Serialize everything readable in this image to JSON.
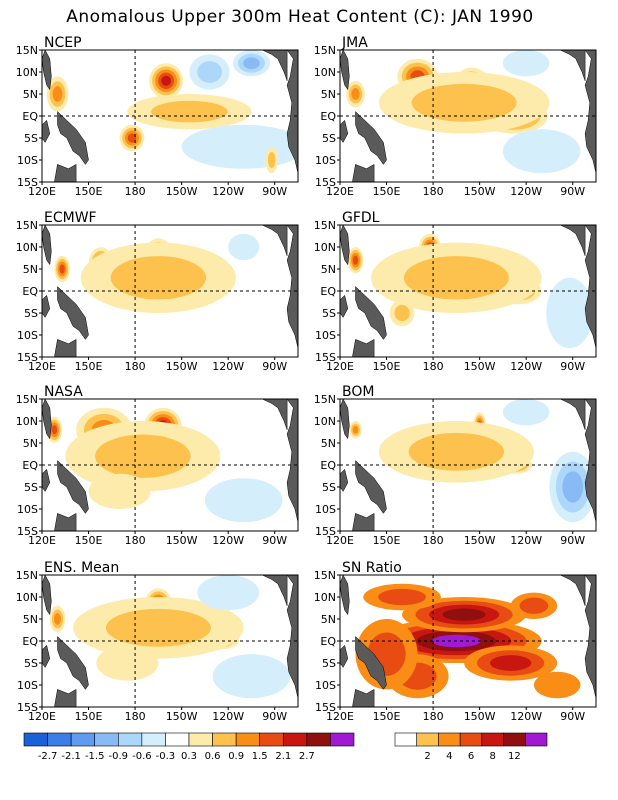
{
  "figure": {
    "title": "Anomalous Upper 300m Heat Content (C): JAN 1990"
  },
  "chart_data": [
    {
      "type": "heatmap",
      "title": "NCEP",
      "xlabel": "",
      "ylabel": "",
      "x_ticks": [
        "120E",
        "150E",
        "180",
        "150W",
        "120W",
        "90W"
      ],
      "y_ticks": [
        "15N",
        "10N",
        "5N",
        "EQ",
        "5S",
        "10S",
        "15S"
      ],
      "xlim": [
        120,
        285
      ],
      "ylim": [
        -15,
        15
      ],
      "features": [
        {
          "lon": 200,
          "lat": 8,
          "rx": 11,
          "ry": 4,
          "v": 2.1
        },
        {
          "lon": 178,
          "lat": -5,
          "rx": 8,
          "ry": 3,
          "v": 1.5
        },
        {
          "lon": 130,
          "lat": 5,
          "rx": 7,
          "ry": 4,
          "v": 0.9
        },
        {
          "lon": 215,
          "lat": 1,
          "rx": 40,
          "ry": 4,
          "v": 0.6
        },
        {
          "lon": 228,
          "lat": 10,
          "rx": 13,
          "ry": 4,
          "v": -0.6
        },
        {
          "lon": 255,
          "lat": 12,
          "rx": 12,
          "ry": 3,
          "v": -0.9
        },
        {
          "lon": 250,
          "lat": -7,
          "rx": 40,
          "ry": 5,
          "v": -0.3
        },
        {
          "lon": 268,
          "lat": -10,
          "rx": 4,
          "ry": 3,
          "v": 0.6
        }
      ]
    },
    {
      "type": "heatmap",
      "title": "JMA",
      "xlabel": "",
      "ylabel": "",
      "x_ticks": [
        "120E",
        "150E",
        "180",
        "150W",
        "120W",
        "90W"
      ],
      "y_ticks": [
        "15N",
        "10N",
        "5N",
        "EQ",
        "5S",
        "10S",
        "15S"
      ],
      "xlim": [
        120,
        285
      ],
      "ylim": [
        -15,
        15
      ],
      "features": [
        {
          "lon": 170,
          "lat": 9,
          "rx": 13,
          "ry": 4,
          "v": 1.5
        },
        {
          "lon": 205,
          "lat": 7,
          "rx": 12,
          "ry": 4,
          "v": 1.5
        },
        {
          "lon": 232,
          "lat": 0,
          "rx": 22,
          "ry": 4,
          "v": 1.5
        },
        {
          "lon": 130,
          "lat": 5,
          "rx": 6,
          "ry": 3,
          "v": 0.9
        },
        {
          "lon": 200,
          "lat": 3,
          "rx": 55,
          "ry": 7,
          "v": 0.6
        },
        {
          "lon": 250,
          "lat": -8,
          "rx": 25,
          "ry": 5,
          "v": -0.3
        },
        {
          "lon": 240,
          "lat": 12,
          "rx": 15,
          "ry": 3,
          "v": -0.3
        }
      ]
    },
    {
      "type": "heatmap",
      "title": "ECMWF",
      "xlabel": "",
      "ylabel": "",
      "x_ticks": [
        "120E",
        "150E",
        "180",
        "150W",
        "120W",
        "90W"
      ],
      "y_ticks": [
        "15N",
        "10N",
        "5N",
        "EQ",
        "5S",
        "10S",
        "15S"
      ],
      "xlim": [
        120,
        285
      ],
      "ylim": [
        -15,
        15
      ],
      "features": [
        {
          "lon": 195,
          "lat": 7,
          "rx": 10,
          "ry": 5,
          "v": 2.1
        },
        {
          "lon": 158,
          "lat": 6,
          "rx": 8,
          "ry": 4,
          "v": 1.5
        },
        {
          "lon": 133,
          "lat": 5,
          "rx": 5,
          "ry": 3,
          "v": 1.5
        },
        {
          "lon": 215,
          "lat": 0,
          "rx": 18,
          "ry": 3,
          "v": 1.5
        },
        {
          "lon": 195,
          "lat": 3,
          "rx": 50,
          "ry": 8,
          "v": 0.6
        },
        {
          "lon": 250,
          "lat": 10,
          "rx": 10,
          "ry": 3,
          "v": -0.3
        }
      ]
    },
    {
      "type": "heatmap",
      "title": "GFDL",
      "xlabel": "",
      "ylabel": "",
      "x_ticks": [
        "120E",
        "150E",
        "180",
        "150W",
        "120W",
        "90W"
      ],
      "y_ticks": [
        "15N",
        "10N",
        "5N",
        "EQ",
        "5S",
        "10S",
        "15S"
      ],
      "xlim": [
        120,
        285
      ],
      "ylim": [
        -15,
        15
      ],
      "features": [
        {
          "lon": 178,
          "lat": 10,
          "rx": 7,
          "ry": 3,
          "v": 1.5
        },
        {
          "lon": 205,
          "lat": 7,
          "rx": 10,
          "ry": 3,
          "v": 1.5
        },
        {
          "lon": 130,
          "lat": 7,
          "rx": 5,
          "ry": 3,
          "v": 1.5
        },
        {
          "lon": 235,
          "lat": 0,
          "rx": 15,
          "ry": 3,
          "v": 0.9
        },
        {
          "lon": 195,
          "lat": 3,
          "rx": 55,
          "ry": 8,
          "v": 0.6
        },
        {
          "lon": 268,
          "lat": -5,
          "rx": 15,
          "ry": 8,
          "v": -0.3
        },
        {
          "lon": 160,
          "lat": -5,
          "rx": 8,
          "ry": 3,
          "v": 0.6
        }
      ]
    },
    {
      "type": "heatmap",
      "title": "NASA",
      "xlabel": "",
      "ylabel": "",
      "x_ticks": [
        "120E",
        "150E",
        "180",
        "150W",
        "120W",
        "90W"
      ],
      "y_ticks": [
        "15N",
        "10N",
        "5N",
        "EQ",
        "5S",
        "10S",
        "15S"
      ],
      "xlim": [
        120,
        285
      ],
      "ylim": [
        -15,
        15
      ],
      "features": [
        {
          "lon": 198,
          "lat": 9,
          "rx": 12,
          "ry": 4,
          "v": 2.1
        },
        {
          "lon": 128,
          "lat": 8,
          "rx": 5,
          "ry": 3,
          "v": 1.5
        },
        {
          "lon": 160,
          "lat": 8,
          "rx": 18,
          "ry": 5,
          "v": 0.9
        },
        {
          "lon": 185,
          "lat": 2,
          "rx": 50,
          "ry": 8,
          "v": 0.6
        },
        {
          "lon": 170,
          "lat": -6,
          "rx": 20,
          "ry": 4,
          "v": 0.3
        },
        {
          "lon": 250,
          "lat": -8,
          "rx": 25,
          "ry": 5,
          "v": -0.3
        }
      ]
    },
    {
      "type": "heatmap",
      "title": "BOM",
      "xlabel": "",
      "ylabel": "",
      "x_ticks": [
        "120E",
        "150E",
        "180",
        "150W",
        "120W",
        "90W"
      ],
      "y_ticks": [
        "15N",
        "10N",
        "5N",
        "EQ",
        "5S",
        "10S",
        "15S"
      ],
      "xlim": [
        120,
        285
      ],
      "ylim": [
        -15,
        15
      ],
      "features": [
        {
          "lon": 210,
          "lat": 9,
          "rx": 4,
          "ry": 3,
          "v": 1.5
        },
        {
          "lon": 232,
          "lat": 0,
          "rx": 12,
          "ry": 2,
          "v": 1.5
        },
        {
          "lon": 130,
          "lat": 8,
          "rx": 4,
          "ry": 2,
          "v": 0.9
        },
        {
          "lon": 195,
          "lat": 3,
          "rx": 50,
          "ry": 7,
          "v": 0.6
        },
        {
          "lon": 270,
          "lat": -5,
          "rx": 15,
          "ry": 8,
          "v": -0.9
        },
        {
          "lon": 240,
          "lat": 12,
          "rx": 15,
          "ry": 3,
          "v": -0.3
        }
      ]
    },
    {
      "type": "heatmap",
      "title": "ENS. Mean",
      "xlabel": "",
      "ylabel": "",
      "x_ticks": [
        "120E",
        "150E",
        "180",
        "150W",
        "120W",
        "90W"
      ],
      "y_ticks": [
        "15N",
        "10N",
        "5N",
        "EQ",
        "5S",
        "10S",
        "15S"
      ],
      "xlim": [
        120,
        285
      ],
      "ylim": [
        -15,
        15
      ],
      "features": [
        {
          "lon": 195,
          "lat": 8,
          "rx": 9,
          "ry": 4,
          "v": 2.1
        },
        {
          "lon": 232,
          "lat": 0,
          "rx": 15,
          "ry": 2,
          "v": 1.5
        },
        {
          "lon": 130,
          "lat": 5,
          "rx": 5,
          "ry": 3,
          "v": 0.9
        },
        {
          "lon": 195,
          "lat": 3,
          "rx": 55,
          "ry": 7,
          "v": 0.6
        },
        {
          "lon": 175,
          "lat": -5,
          "rx": 20,
          "ry": 4,
          "v": 0.3
        },
        {
          "lon": 240,
          "lat": 11,
          "rx": 20,
          "ry": 4,
          "v": -0.3
        },
        {
          "lon": 255,
          "lat": -8,
          "rx": 25,
          "ry": 5,
          "v": -0.3
        }
      ]
    },
    {
      "type": "heatmap",
      "title": "SN Ratio",
      "xlabel": "",
      "ylabel": "",
      "x_ticks": [
        "120E",
        "150E",
        "180",
        "150W",
        "120W",
        "90W"
      ],
      "y_ticks": [
        "15N",
        "10N",
        "5N",
        "EQ",
        "5S",
        "10S",
        "15S"
      ],
      "xlim": [
        120,
        285
      ],
      "ylim": [
        -15,
        15
      ],
      "features": [
        {
          "lon": 195,
          "lat": 0,
          "rx": 55,
          "ry": 5,
          "v": 12
        },
        {
          "lon": 200,
          "lat": 6,
          "rx": 40,
          "ry": 4,
          "v": 8
        },
        {
          "lon": 230,
          "lat": -5,
          "rx": 30,
          "ry": 4,
          "v": 6
        },
        {
          "lon": 170,
          "lat": -8,
          "rx": 20,
          "ry": 5,
          "v": 4
        },
        {
          "lon": 150,
          "lat": -3,
          "rx": 20,
          "ry": 8,
          "v": 4
        },
        {
          "lon": 245,
          "lat": 8,
          "rx": 15,
          "ry": 3,
          "v": 4
        },
        {
          "lon": 160,
          "lat": 10,
          "rx": 25,
          "ry": 3,
          "v": 4
        },
        {
          "lon": 260,
          "lat": -10,
          "rx": 15,
          "ry": 3,
          "v": 2
        }
      ]
    }
  ],
  "colorbars": {
    "anomaly": {
      "labels": [
        "-2.7",
        "-2.1",
        "-1.5",
        "-0.9",
        "-0.6",
        "-0.3",
        "0.3",
        "0.6",
        "0.9",
        "1.5",
        "2.1",
        "2.7"
      ],
      "colors": [
        "#1a60d8",
        "#3a7ee6",
        "#5f9cf0",
        "#88bbf5",
        "#acd6fa",
        "#d4eefc",
        "#ffffff",
        "#fdebac",
        "#fdc24e",
        "#f98d16",
        "#e84c12",
        "#c81710",
        "#901010",
        "#9f1ad0"
      ]
    },
    "snratio": {
      "labels": [
        "2",
        "4",
        "6",
        "8",
        "12"
      ],
      "colors": [
        "#ffffff",
        "#fdc24e",
        "#f98d16",
        "#e84c12",
        "#c81710",
        "#901010",
        "#9f1ad0"
      ]
    }
  }
}
